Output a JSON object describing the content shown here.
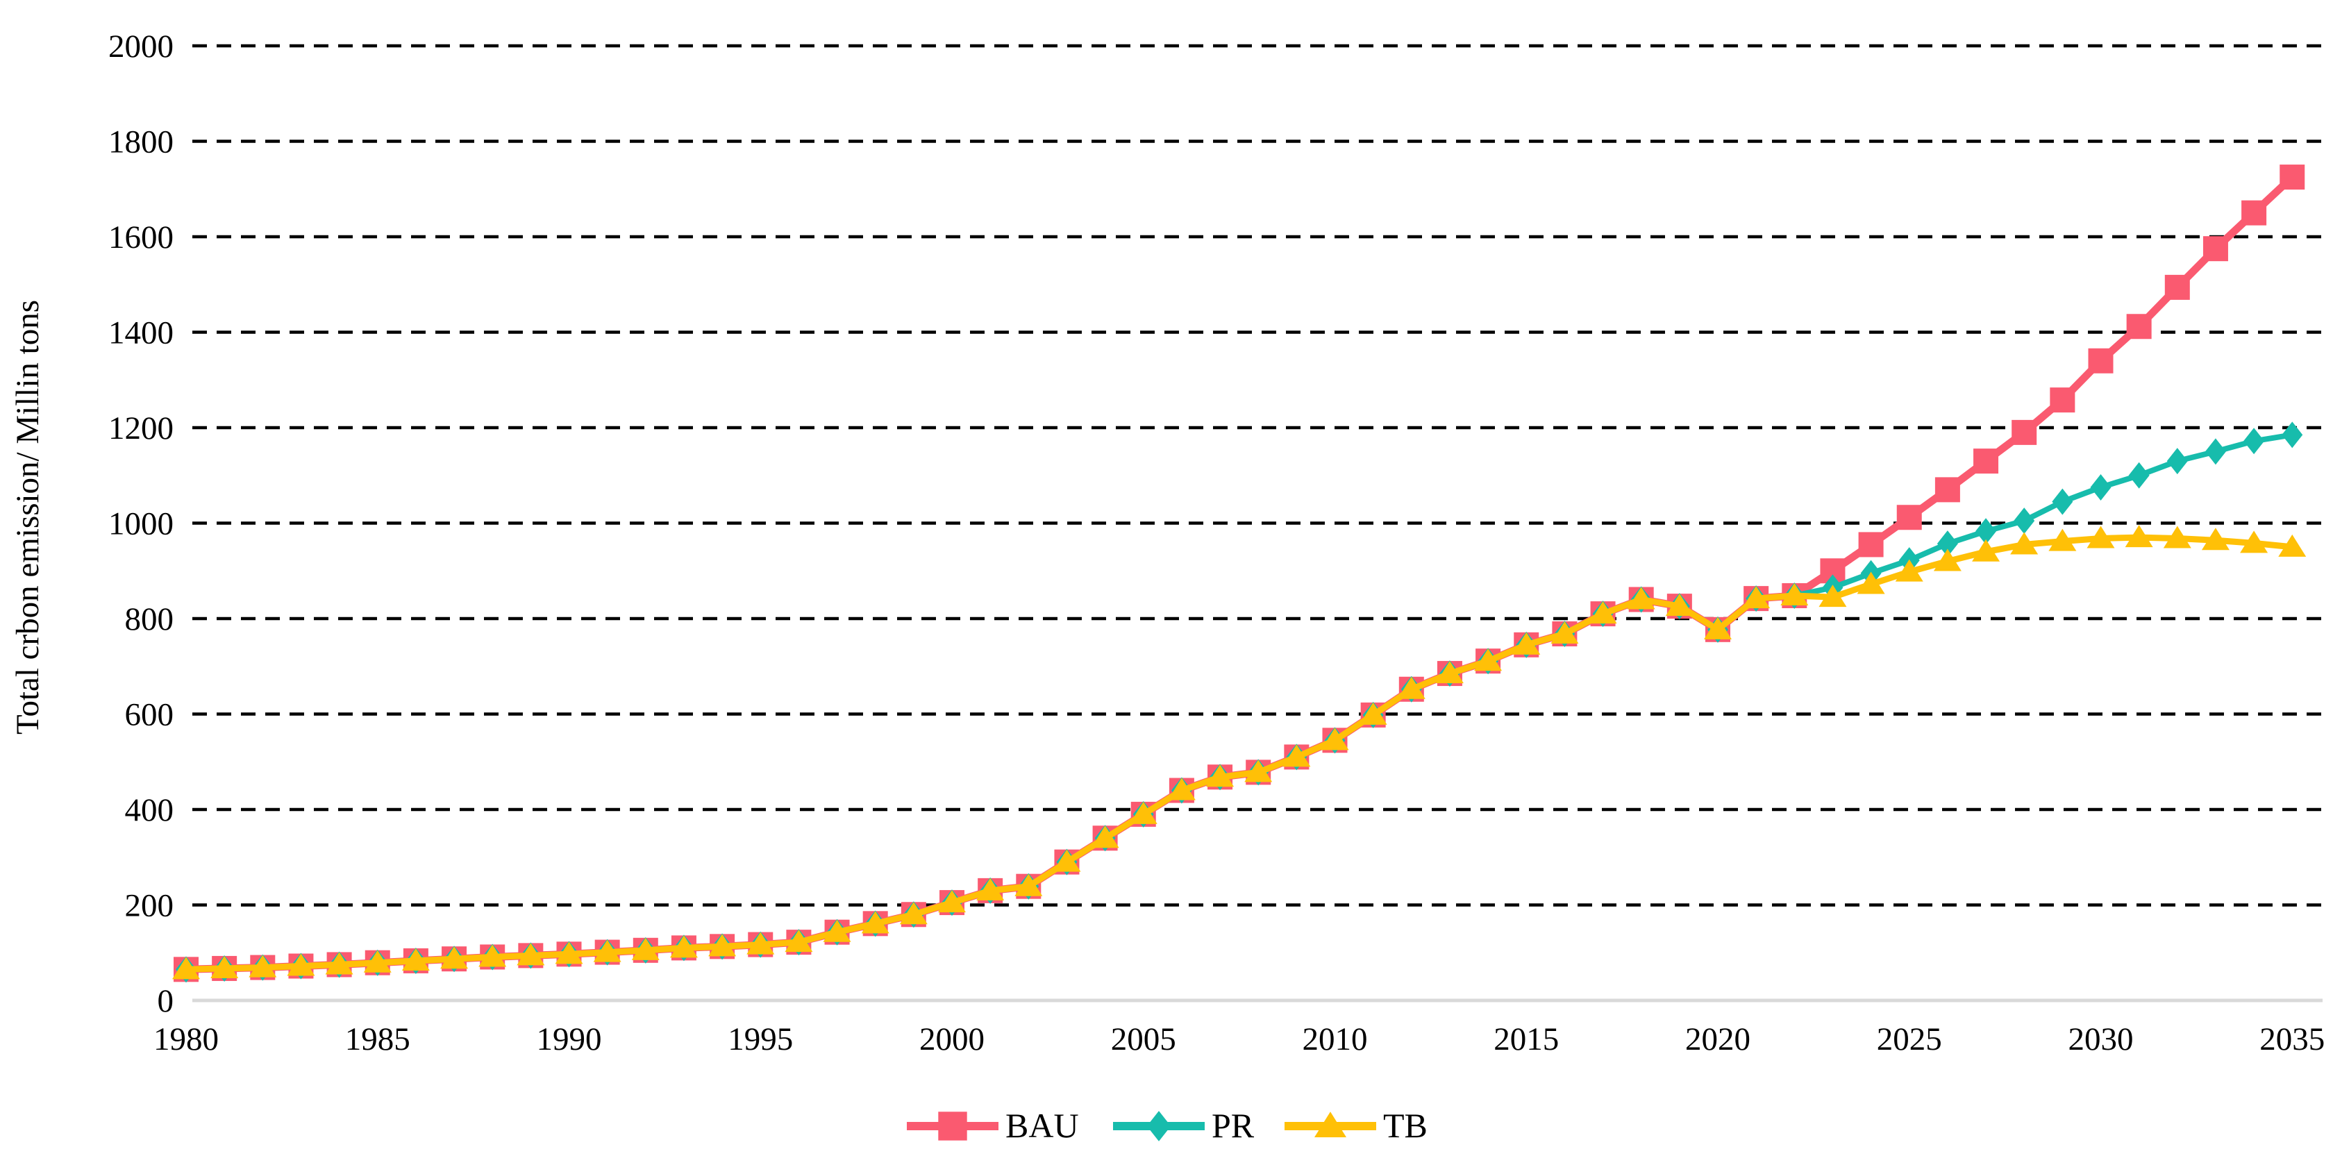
{
  "chart_data": {
    "type": "line",
    "title": "",
    "xlabel": "",
    "ylabel": "Total crbon emission/ Millin tons",
    "x_start": 1980,
    "x_end": 2035,
    "x_tick_step": 5,
    "ylim": [
      0,
      2000
    ],
    "y_tick_step": 200,
    "grid": "horizontal dashed black lines, on",
    "legend_position": "bottom-center",
    "background_color": "#ffffff",
    "gridline_color": "#000000",
    "baseline_color": "#d9d9d9",
    "text_color": "#000000",
    "years": [
      1980,
      1981,
      1982,
      1983,
      1984,
      1985,
      1986,
      1987,
      1988,
      1989,
      1990,
      1991,
      1992,
      1993,
      1994,
      1995,
      1996,
      1997,
      1998,
      1999,
      2000,
      2001,
      2002,
      2003,
      2004,
      2005,
      2006,
      2007,
      2008,
      2009,
      2010,
      2011,
      2012,
      2013,
      2014,
      2015,
      2016,
      2017,
      2018,
      2019,
      2020,
      2021,
      2022,
      2023,
      2024,
      2025,
      2026,
      2027,
      2028,
      2029,
      2030,
      2031,
      2032,
      2033,
      2034,
      2035
    ],
    "series": [
      {
        "name": "BAU",
        "color": "#FA5A70",
        "marker": "square",
        "values": [
          65,
          67,
          69,
          72,
          75,
          79,
          83,
          87,
          91,
          94,
          97,
          101,
          105,
          110,
          113,
          117,
          122,
          143,
          161,
          180,
          205,
          230,
          239,
          290,
          340,
          390,
          440,
          468,
          478,
          510,
          545,
          598,
          652,
          685,
          711,
          745,
          768,
          810,
          840,
          826,
          777,
          842,
          848,
          900,
          955,
          1012,
          1070,
          1130,
          1190,
          1258,
          1340,
          1412,
          1494,
          1575,
          1650,
          1725
        ]
      },
      {
        "name": "PR",
        "color": "#17BCAC",
        "marker": "diamond",
        "values": [
          65,
          67,
          69,
          72,
          75,
          79,
          83,
          87,
          91,
          94,
          97,
          101,
          105,
          110,
          113,
          117,
          122,
          143,
          161,
          180,
          205,
          230,
          239,
          290,
          340,
          390,
          440,
          468,
          478,
          510,
          545,
          598,
          652,
          685,
          711,
          745,
          768,
          810,
          840,
          826,
          777,
          842,
          848,
          865,
          895,
          922,
          957,
          983,
          1005,
          1045,
          1075,
          1100,
          1130,
          1150,
          1172,
          1185
        ]
      },
      {
        "name": "TB",
        "color": "#FFC007",
        "marker": "triangle",
        "values": [
          65,
          67,
          69,
          72,
          75,
          79,
          83,
          87,
          91,
          94,
          97,
          101,
          105,
          110,
          113,
          117,
          122,
          143,
          161,
          180,
          205,
          230,
          239,
          290,
          340,
          390,
          440,
          468,
          478,
          510,
          545,
          598,
          652,
          685,
          711,
          745,
          768,
          810,
          840,
          826,
          777,
          842,
          848,
          845,
          872,
          898,
          920,
          940,
          955,
          962,
          968,
          970,
          968,
          964,
          958,
          950
        ]
      }
    ]
  }
}
